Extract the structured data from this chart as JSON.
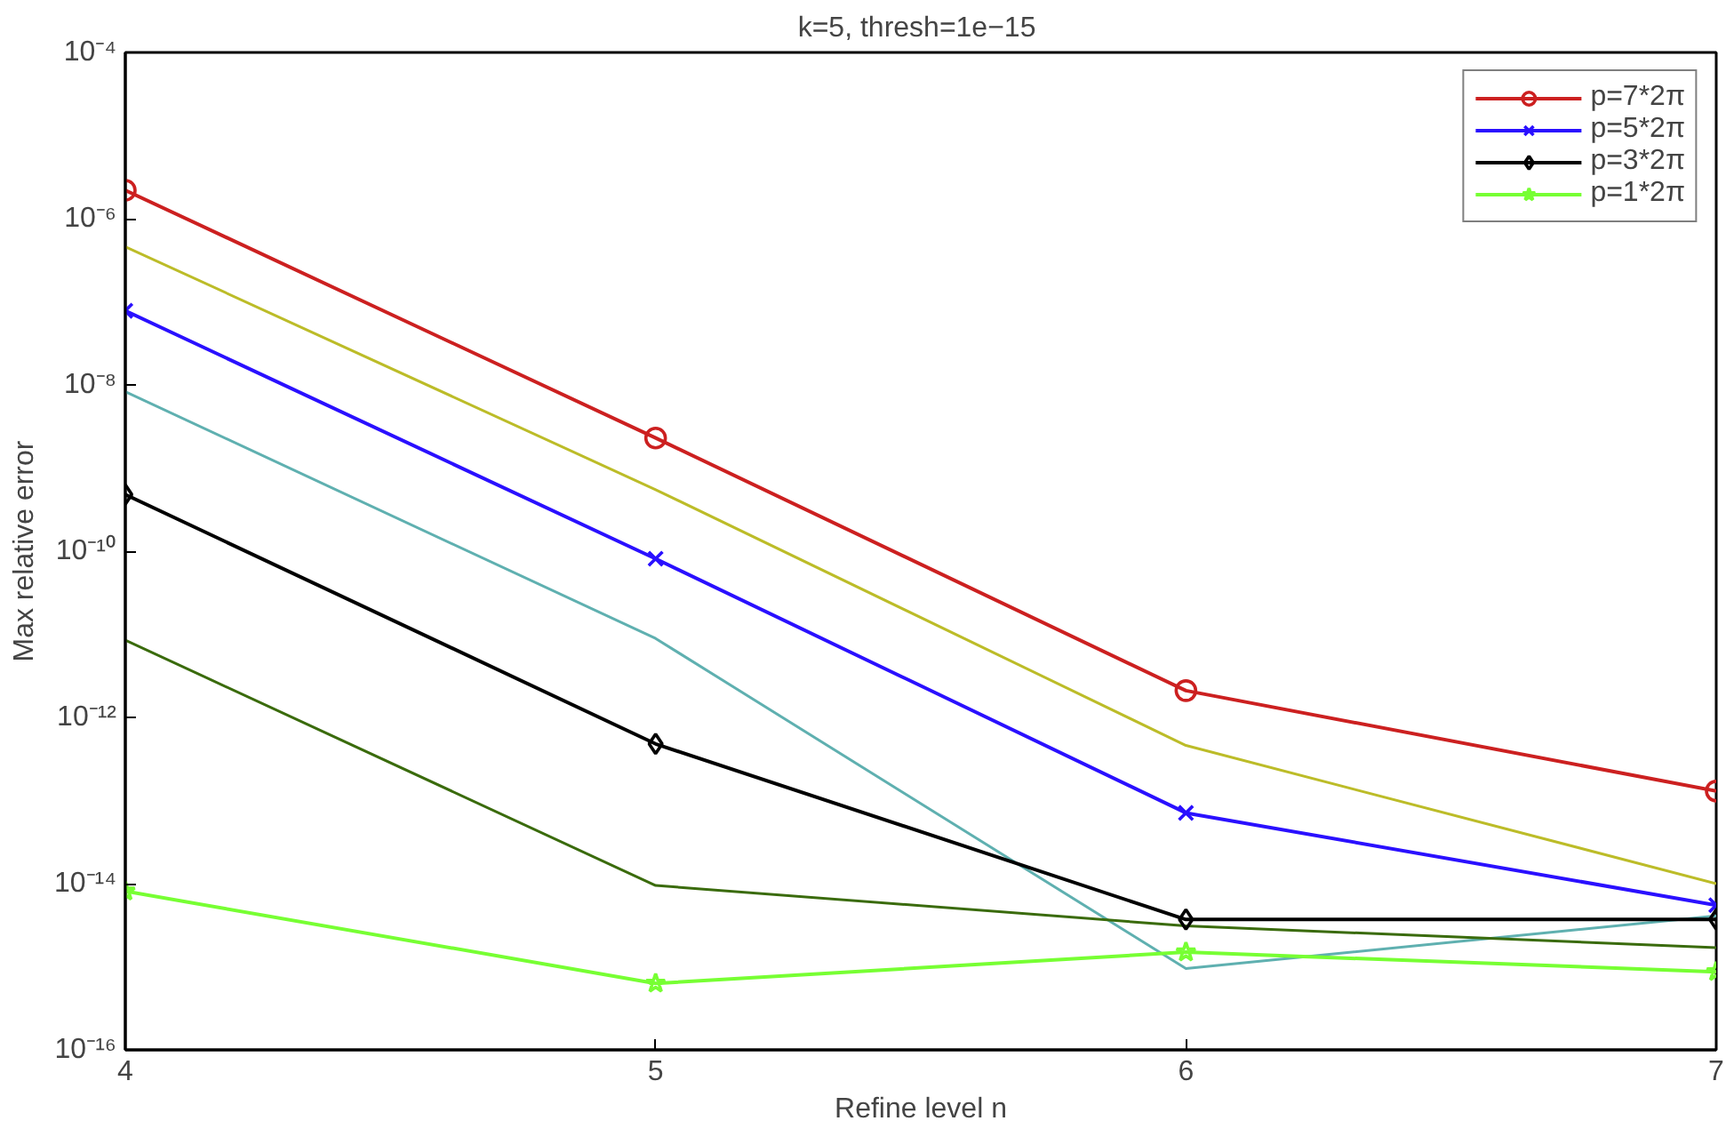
{
  "chart_data": {
    "type": "line",
    "title": "k=5,  thresh=1e−15",
    "xlabel": "Refine level n",
    "ylabel": "Max relative error",
    "x": [
      4,
      5,
      6,
      7
    ],
    "log": "y",
    "grid": false,
    "legend": "top right",
    "line_style": "solid",
    "xlim": [
      4,
      7
    ],
    "xticks": [
      4,
      5,
      6,
      7
    ],
    "ylim": [
      1e-16,
      0.0001
    ],
    "yticks": [
      {
        "value": 1e-16,
        "label": "10⁻¹⁶"
      },
      {
        "value": 1e-14,
        "label": "10⁻¹⁴"
      },
      {
        "value": 1e-12,
        "label": "10⁻¹²"
      },
      {
        "value": 1e-10,
        "label": "10⁻¹⁰"
      },
      {
        "value": 1e-08,
        "label": "10⁻⁸"
      },
      {
        "value": 1e-06,
        "label": "10⁻⁶"
      },
      {
        "value": 0.0001,
        "label": "10⁻⁴"
      }
    ],
    "series": [
      {
        "color": "#bcbc28",
        "marker": "none",
        "values": [
          4.6e-07,
          5.5e-10,
          4.6e-13,
          1e-14
        ]
      },
      {
        "color": "#5fb0b0",
        "marker": "none",
        "values": [
          8.3e-09,
          8.9e-12,
          9.5e-16,
          4.1e-15
        ]
      },
      {
        "color": "#3a6b0c",
        "marker": "none",
        "values": [
          8.5e-12,
          9.5e-15,
          3.1e-15,
          1.7e-15
        ]
      },
      {
        "name": "p=7*2π",
        "color": "#cc2020",
        "marker": "circle",
        "values": [
          2.2e-06,
          2.3e-09,
          2.1e-12,
          1.3e-13
        ]
      },
      {
        "name": "p=5*2π",
        "color": "#2a10ff",
        "marker": "cross",
        "values": [
          7.8e-08,
          8.1e-11,
          7.1e-14,
          5.5e-15
        ]
      },
      {
        "name": "p=3*2π",
        "color": "#000000",
        "marker": "diamond",
        "values": [
          4.8e-10,
          4.8e-13,
          3.7e-15,
          3.7e-15
        ]
      },
      {
        "name": "p=1*2π",
        "color": "#77ff33",
        "marker": "star",
        "values": [
          8.1e-15,
          6.3e-16,
          1.5e-15,
          8.7e-16
        ]
      }
    ]
  }
}
